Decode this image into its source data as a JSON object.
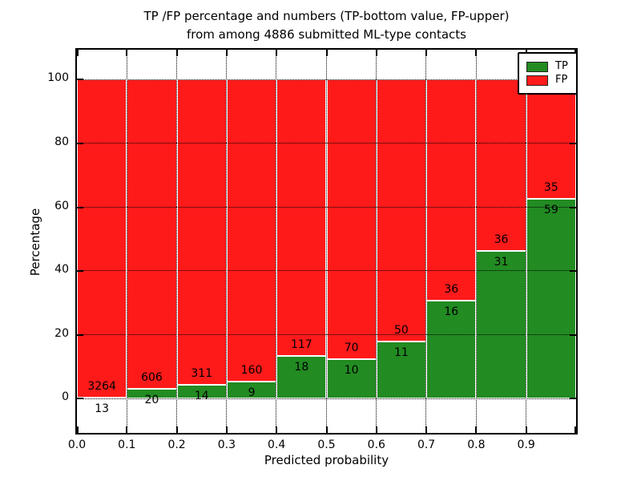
{
  "title": {
    "line1": "TP /FP percentage and numbers (TP-bottom value, FP-upper)",
    "line2": "from among 4886 submitted ML-type contacts"
  },
  "chart_data": {
    "type": "bar",
    "stacked": true,
    "title": "TP /FP percentage and numbers (TP-bottom value, FP-upper) from among 4886 submitted ML-type contacts",
    "xlabel": "Predicted probability",
    "ylabel": "Percentage",
    "total_contacts": 4886,
    "bin_edges": [
      0.0,
      0.1,
      0.2,
      0.3,
      0.4,
      0.5,
      0.6,
      0.7,
      0.8,
      0.9,
      1.0
    ],
    "xtick_labels": [
      "0.0",
      "0.1",
      "0.2",
      "0.3",
      "0.4",
      "0.5",
      "0.6",
      "0.7",
      "0.8",
      "0.9"
    ],
    "ytick_values": [
      0,
      20,
      40,
      60,
      80,
      100
    ],
    "xlim": [
      0.0,
      1.0
    ],
    "ylim": [
      -10.7,
      109.4
    ],
    "grid": true,
    "bar_unit": "percent of bin total (TP% + FP% = 100)",
    "series": [
      {
        "name": "TP",
        "color": "#228b22",
        "counts": [
          13,
          20,
          14,
          9,
          18,
          10,
          11,
          16,
          31,
          59
        ]
      },
      {
        "name": "FP",
        "color": "#ff1a1a",
        "counts": [
          3264,
          606,
          311,
          160,
          117,
          70,
          50,
          36,
          36,
          35
        ]
      }
    ],
    "tp_percent": [
      0.4,
      3.2,
      4.3,
      5.3,
      13.3,
      12.5,
      18.0,
      30.8,
      46.3,
      62.8
    ],
    "legend": {
      "position": "upper right",
      "entries": [
        {
          "label": "TP",
          "color": "#228b22"
        },
        {
          "label": "FP",
          "color": "#ff1a1a"
        }
      ]
    }
  },
  "colors": {
    "tp_green": "#228b22",
    "fp_red": "#ff1a1a",
    "grid": "#000000",
    "background": "#ffffff"
  }
}
